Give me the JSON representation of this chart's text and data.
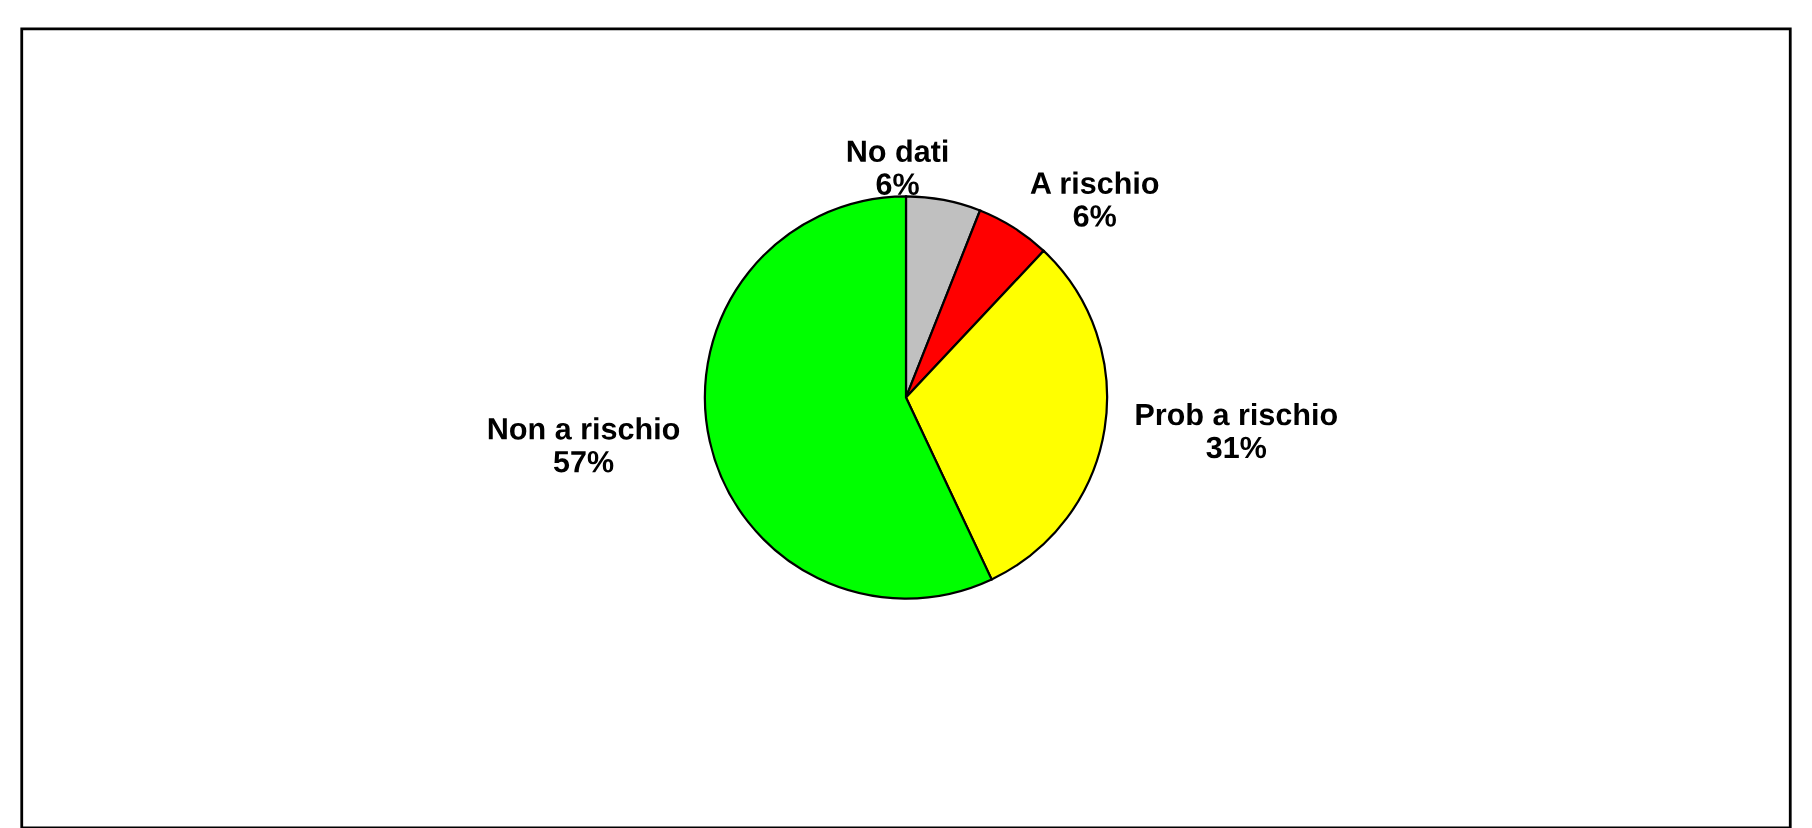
{
  "chart_data": {
    "type": "pie",
    "categories": [
      "No dati",
      "A rischio",
      "Prob a rischio",
      "Non a rischio"
    ],
    "values": [
      6,
      6,
      31,
      57
    ],
    "colors": [
      "#c0c0c0",
      "#ff0000",
      "#ffff00",
      "#00ff00"
    ],
    "value_labels": [
      "6%",
      "6%",
      "31%",
      "57%"
    ]
  }
}
